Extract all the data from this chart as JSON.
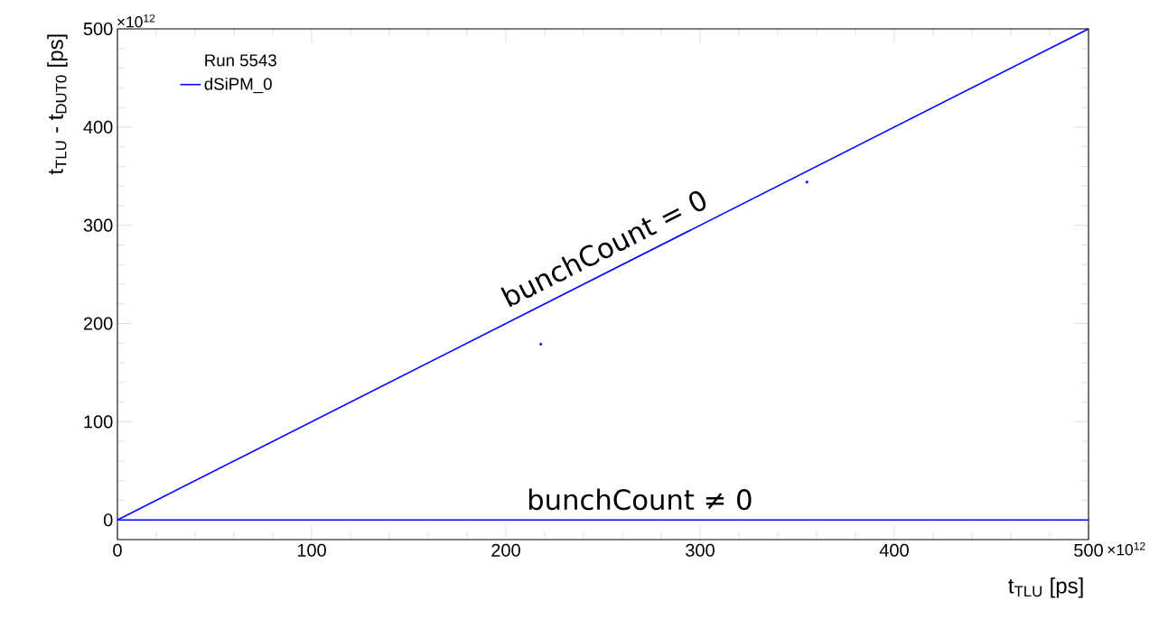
{
  "chart_data": {
    "type": "line",
    "xlabel": "t$_{TLU}$ [ps]",
    "ylabel": "t$_{TLU}$ - t$_{DUT0}$ [ps]",
    "legend_title": "Run 5543",
    "legend": "top left",
    "xlim": [
      0,
      500
    ],
    "ylim": [
      -20,
      500
    ],
    "xticks": [
      0,
      100,
      200,
      300,
      400,
      500
    ],
    "yticks": [
      0,
      100,
      200,
      300,
      400,
      500
    ],
    "series": [
      {
        "name": "dSiPM_0",
        "color": "#0000ff",
        "x": [
          0,
          500
        ],
        "values": [
          0,
          500
        ]
      },
      {
        "color": "#0000ff",
        "x": [
          0,
          500
        ],
        "values": [
          0,
          0
        ]
      },
      {
        "type": "scatter",
        "marker": "square",
        "color": "#0000ff",
        "x": [
          218,
          355
        ],
        "values": [
          179,
          344
        ]
      }
    ],
    "annotations": [
      {
        "text": "bunchCount = 0",
        "x": 256,
        "y": 256
      },
      {
        "text": "bunchCount ≠ 0",
        "x": 269,
        "y": 0
      },
      "×10$^{12}$",
      "×10$^{12}$"
    ]
  }
}
